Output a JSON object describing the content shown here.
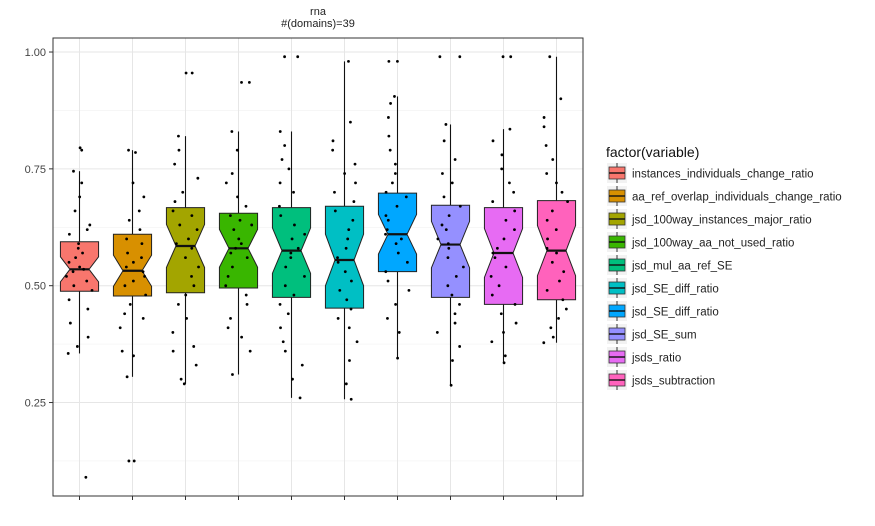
{
  "chart_data": {
    "type": "box",
    "title": "rna",
    "subtitle": "#(domains)=39",
    "xlabel": "",
    "ylabel": "",
    "ylim": [
      0.05,
      1.03
    ],
    "y_ticks": [
      0.25,
      0.5,
      0.75,
      1.0
    ],
    "y_tick_labels": [
      "0.25",
      "0.50",
      "0.75",
      "1.00"
    ],
    "grid": true,
    "notched": true,
    "legend_title": "factor(variable)",
    "legend_position": "right",
    "series": [
      {
        "name": "instances_individuals_change_ratio",
        "color": "#F8766D",
        "q1": 0.488,
        "median": 0.535,
        "q3": 0.594,
        "whisker_low": 0.355,
        "whisker_high": 0.745,
        "points": [
          0.09,
          0.355,
          0.37,
          0.39,
          0.42,
          0.45,
          0.47,
          0.49,
          0.5,
          0.51,
          0.52,
          0.53,
          0.535,
          0.54,
          0.55,
          0.56,
          0.57,
          0.58,
          0.59,
          0.61,
          0.62,
          0.63,
          0.66,
          0.69,
          0.72,
          0.745,
          0.79,
          0.795
        ]
      },
      {
        "name": "aa_ref_overlap_individuals_change_ratio",
        "color": "#D89000",
        "q1": 0.478,
        "median": 0.532,
        "q3": 0.61,
        "whisker_low": 0.305,
        "whisker_high": 0.79,
        "points": [
          0.125,
          0.125,
          0.305,
          0.35,
          0.36,
          0.41,
          0.43,
          0.44,
          0.46,
          0.48,
          0.5,
          0.51,
          0.52,
          0.53,
          0.54,
          0.55,
          0.56,
          0.57,
          0.59,
          0.6,
          0.62,
          0.64,
          0.66,
          0.69,
          0.72,
          0.785,
          0.79
        ]
      },
      {
        "name": "jsd_100way_instances_major_ratio",
        "color": "#A3A500",
        "q1": 0.485,
        "median": 0.585,
        "q3": 0.667,
        "whisker_low": 0.29,
        "whisker_high": 0.82,
        "points": [
          0.29,
          0.3,
          0.33,
          0.36,
          0.37,
          0.4,
          0.43,
          0.46,
          0.48,
          0.5,
          0.52,
          0.54,
          0.56,
          0.58,
          0.59,
          0.6,
          0.62,
          0.63,
          0.65,
          0.66,
          0.68,
          0.7,
          0.73,
          0.76,
          0.79,
          0.82,
          0.955,
          0.955
        ]
      },
      {
        "name": "jsd_100way_aa_not_used_ratio",
        "color": "#39B600",
        "q1": 0.495,
        "median": 0.58,
        "q3": 0.655,
        "whisker_low": 0.31,
        "whisker_high": 0.83,
        "points": [
          0.31,
          0.36,
          0.39,
          0.41,
          0.43,
          0.46,
          0.48,
          0.5,
          0.52,
          0.54,
          0.56,
          0.57,
          0.58,
          0.59,
          0.6,
          0.62,
          0.63,
          0.64,
          0.65,
          0.67,
          0.69,
          0.72,
          0.74,
          0.79,
          0.83,
          0.935,
          0.935
        ]
      },
      {
        "name": "jsd_mul_aa_ref_SE",
        "color": "#00BF7D",
        "q1": 0.475,
        "median": 0.575,
        "q3": 0.667,
        "whisker_low": 0.26,
        "whisker_high": 0.83,
        "points": [
          0.26,
          0.3,
          0.33,
          0.36,
          0.38,
          0.41,
          0.44,
          0.46,
          0.48,
          0.5,
          0.52,
          0.54,
          0.56,
          0.57,
          0.58,
          0.6,
          0.61,
          0.63,
          0.65,
          0.67,
          0.7,
          0.72,
          0.75,
          0.77,
          0.8,
          0.83,
          0.99,
          0.99
        ]
      },
      {
        "name": "jsd_SE_diff_ratio",
        "color": "#00BFC4",
        "q1": 0.452,
        "median": 0.555,
        "q3": 0.67,
        "whisker_low": 0.257,
        "whisker_high": 0.98,
        "points": [
          0.257,
          0.29,
          0.34,
          0.38,
          0.41,
          0.43,
          0.45,
          0.47,
          0.49,
          0.51,
          0.53,
          0.55,
          0.56,
          0.58,
          0.6,
          0.62,
          0.64,
          0.66,
          0.68,
          0.7,
          0.72,
          0.74,
          0.76,
          0.79,
          0.81,
          0.85,
          0.98
        ]
      },
      {
        "name": "jsd_SE_diff_ratio",
        "color": "#00A7FF",
        "q1": 0.53,
        "median": 0.61,
        "q3": 0.698,
        "whisker_low": 0.345,
        "whisker_high": 0.905,
        "points": [
          0.345,
          0.4,
          0.43,
          0.46,
          0.49,
          0.51,
          0.53,
          0.55,
          0.57,
          0.59,
          0.6,
          0.61,
          0.62,
          0.64,
          0.65,
          0.67,
          0.69,
          0.7,
          0.72,
          0.74,
          0.76,
          0.79,
          0.82,
          0.86,
          0.89,
          0.905,
          0.98,
          0.98
        ]
      },
      {
        "name": "jsd_SE_sum",
        "color": "#9590FF",
        "q1": 0.475,
        "median": 0.588,
        "q3": 0.672,
        "whisker_low": 0.287,
        "whisker_high": 0.845,
        "points": [
          0.287,
          0.34,
          0.37,
          0.4,
          0.42,
          0.44,
          0.46,
          0.48,
          0.5,
          0.52,
          0.54,
          0.56,
          0.58,
          0.59,
          0.6,
          0.62,
          0.63,
          0.65,
          0.67,
          0.69,
          0.72,
          0.74,
          0.77,
          0.81,
          0.845,
          0.99,
          0.99
        ]
      },
      {
        "name": "jsds_ratio",
        "color": "#E76BF3",
        "q1": 0.46,
        "median": 0.57,
        "q3": 0.667,
        "whisker_low": 0.335,
        "whisker_high": 0.835,
        "points": [
          0.335,
          0.35,
          0.38,
          0.4,
          0.42,
          0.44,
          0.46,
          0.48,
          0.5,
          0.52,
          0.54,
          0.56,
          0.57,
          0.58,
          0.6,
          0.62,
          0.64,
          0.66,
          0.68,
          0.7,
          0.72,
          0.75,
          0.78,
          0.81,
          0.835,
          0.99,
          0.99
        ]
      },
      {
        "name": "jsds_subtraction",
        "color": "#FF62BC",
        "q1": 0.47,
        "median": 0.575,
        "q3": 0.682,
        "whisker_low": 0.378,
        "whisker_high": 0.99,
        "points": [
          0.378,
          0.39,
          0.41,
          0.43,
          0.45,
          0.47,
          0.49,
          0.51,
          0.53,
          0.55,
          0.57,
          0.58,
          0.6,
          0.62,
          0.64,
          0.66,
          0.68,
          0.7,
          0.72,
          0.74,
          0.77,
          0.8,
          0.84,
          0.86,
          0.9,
          0.99
        ]
      }
    ]
  }
}
